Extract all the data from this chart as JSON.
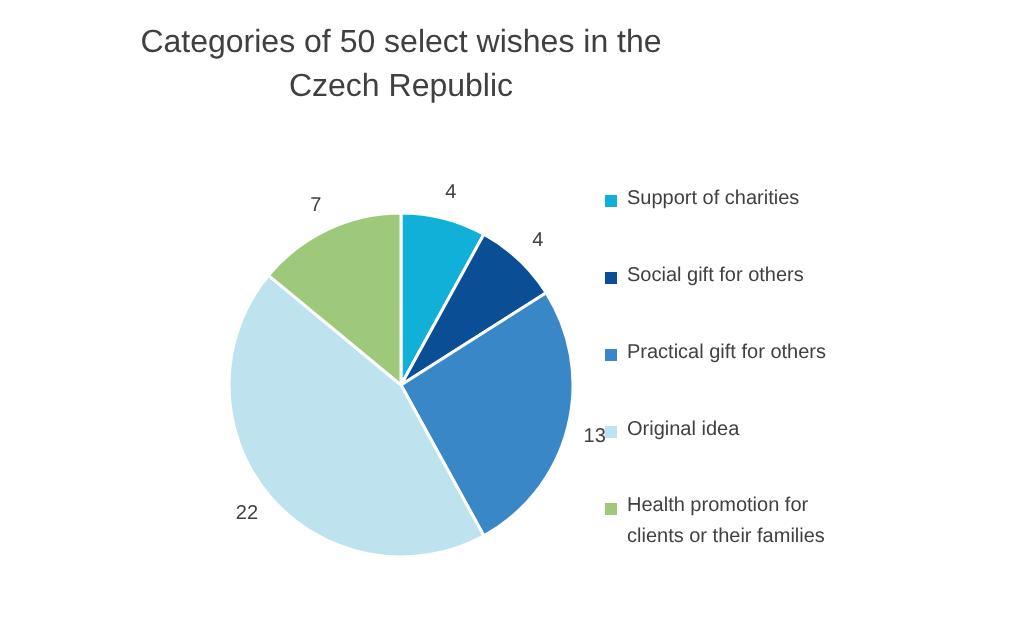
{
  "chart_data": {
    "type": "pie",
    "title": "Categories of 50 select wishes in the Czech Republic",
    "categories": [
      "Support of charities",
      "Social gift for others",
      "Practical gift for others",
      "Original idea",
      "Health promotion for clients or their families"
    ],
    "values": [
      4,
      4,
      13,
      22,
      7
    ],
    "colors": [
      "#10b0d8",
      "#0a4f96",
      "#3a87c8",
      "#bee3ee",
      "#9ec97b"
    ],
    "data_labels": true,
    "legend": "right"
  }
}
